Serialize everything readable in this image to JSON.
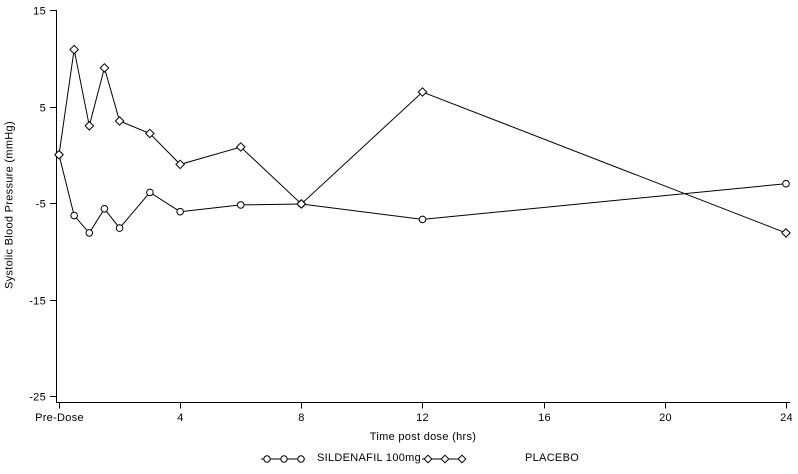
{
  "chart_data": {
    "type": "line",
    "title": "",
    "xlabel": "Time post dose (hrs)",
    "ylabel": "Systolic Blood Pressure (mmHg)",
    "xlim": [
      0,
      24.2
    ],
    "ylim": [
      -25.6,
      15
    ],
    "grid": false,
    "legend_position": "bottom",
    "x_ticks": [
      {
        "t": 0,
        "label": "Pre-Dose"
      },
      {
        "t": 4,
        "label": "4"
      },
      {
        "t": 8,
        "label": "8"
      },
      {
        "t": 12,
        "label": "12"
      },
      {
        "t": 16,
        "label": "16"
      },
      {
        "t": 20,
        "label": "20"
      },
      {
        "t": 24,
        "label": "24"
      }
    ],
    "y_ticks": [
      15,
      5,
      -5,
      -15,
      -25
    ],
    "x": [
      0,
      0.5,
      1,
      1.5,
      2,
      3,
      4,
      6,
      8,
      12,
      24
    ],
    "series": [
      {
        "name": "SILDENAFIL 100mg",
        "marker": "circle",
        "values": [
          0,
          -6.3,
          -8.1,
          -5.6,
          -7.6,
          -3.9,
          -5.9,
          -5.2,
          -5.1,
          -6.7,
          -3.0
        ]
      },
      {
        "name": "PLACEBO",
        "marker": "diamond",
        "values": [
          0,
          10.9,
          3.0,
          9.0,
          3.5,
          2.2,
          -1.0,
          0.8,
          -5.1,
          6.5,
          -8.1
        ]
      }
    ],
    "colors": {
      "foreground": "#000000",
      "background": "#ffffff"
    }
  }
}
